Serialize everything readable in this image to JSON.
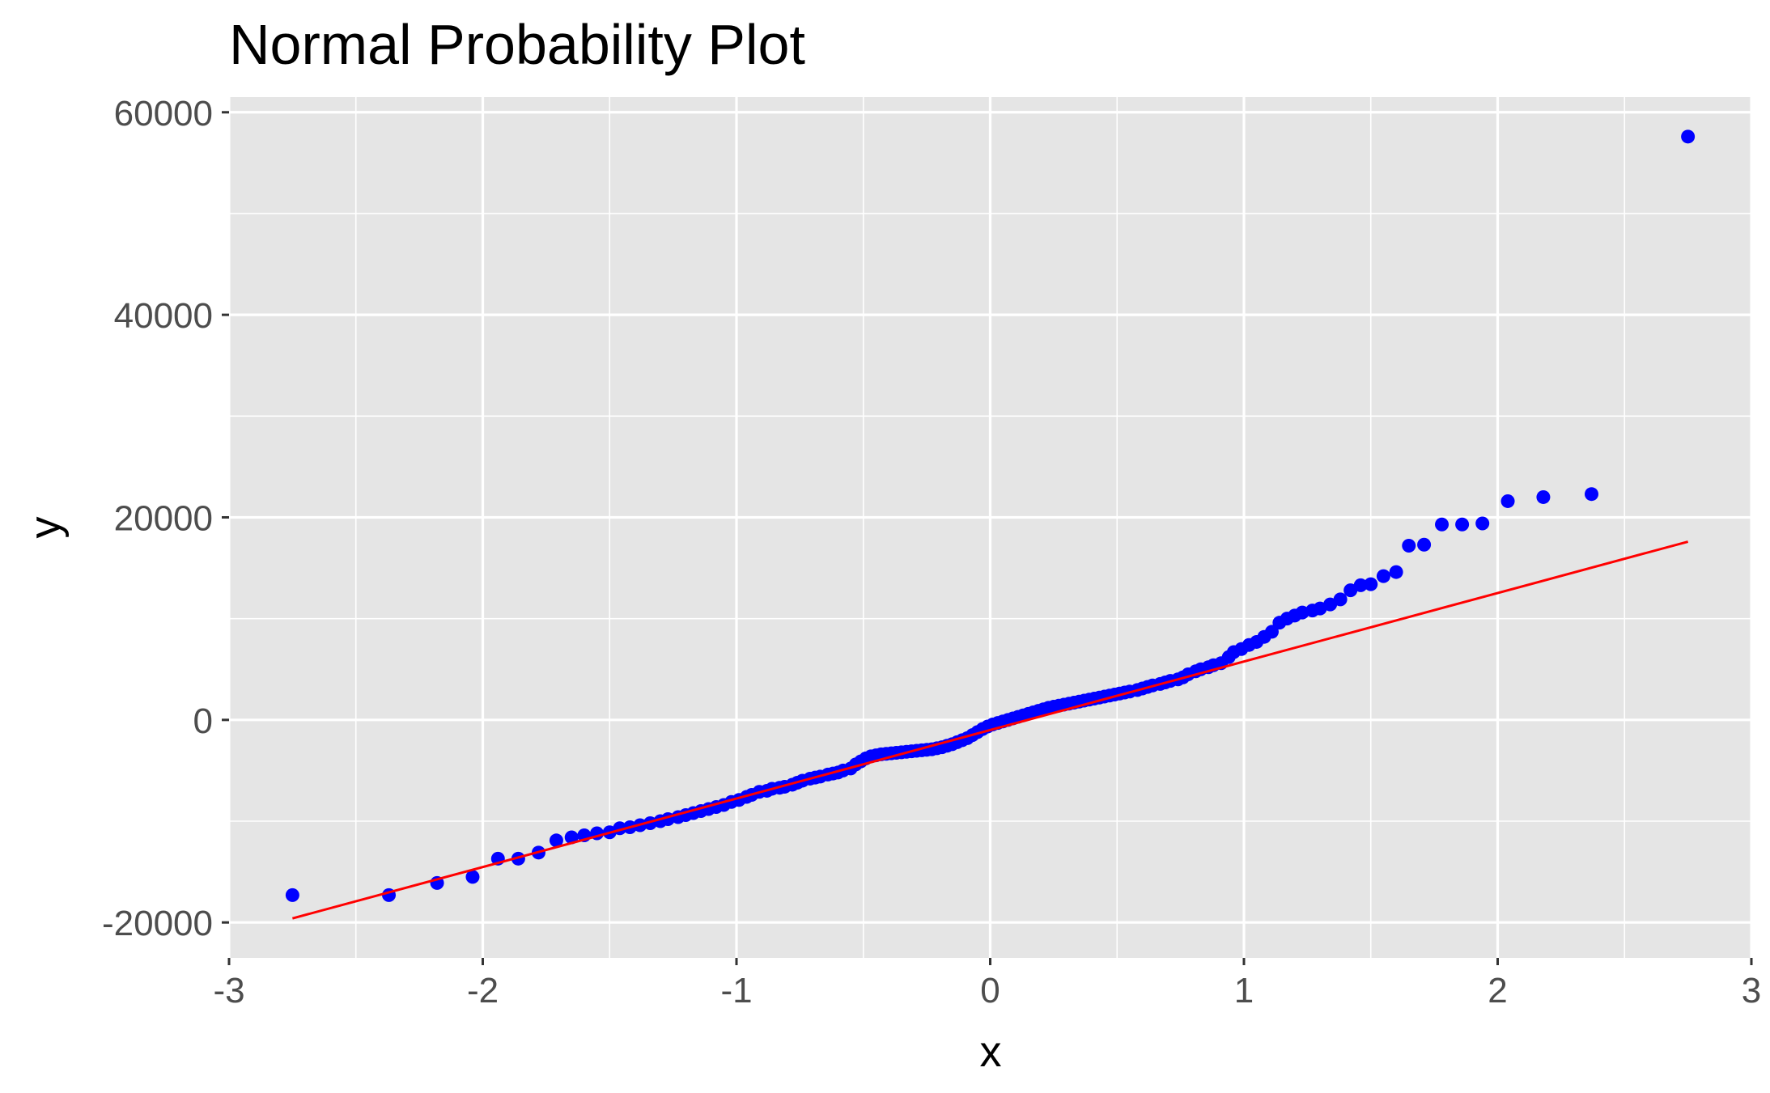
{
  "chart_data": {
    "type": "scatter",
    "title": "Normal Probability Plot",
    "xlabel": "x",
    "ylabel": "y",
    "xlim": [
      -3,
      3
    ],
    "ylim": [
      -23500,
      61500
    ],
    "x_ticks": [
      -3,
      -2,
      -1,
      0,
      1,
      2,
      3
    ],
    "x_tick_labels": [
      "-3",
      "-2",
      "-1",
      "0",
      "1",
      "2",
      "3"
    ],
    "y_ticks": [
      -20000,
      0,
      20000,
      40000,
      60000
    ],
    "y_tick_labels": [
      "-20000",
      "0",
      "20000",
      "40000",
      "60000"
    ],
    "grid": true,
    "legend": "none",
    "colors": {
      "panel_background": "#e5e5e5",
      "grid_line": "#ffffff",
      "points": "#0000ff",
      "reference_line": "#ff0000",
      "tick_label": "#4d4d4d"
    },
    "reference_line": {
      "x": [
        -2.75,
        2.75
      ],
      "y": [
        -19600,
        17600
      ]
    },
    "series": [
      {
        "points": [
          [
            -2.75,
            -17300
          ],
          [
            -2.37,
            -17300
          ],
          [
            -2.18,
            -16100
          ],
          [
            -2.04,
            -15500
          ],
          [
            -1.94,
            -13700
          ],
          [
            -1.86,
            -13700
          ],
          [
            -1.78,
            -13100
          ],
          [
            -1.71,
            -11900
          ],
          [
            -1.65,
            -11600
          ],
          [
            -1.6,
            -11400
          ],
          [
            -1.55,
            -11200
          ],
          [
            -1.5,
            -11100
          ],
          [
            -1.46,
            -10700
          ],
          [
            -1.42,
            -10600
          ],
          [
            -1.38,
            -10400
          ],
          [
            -1.34,
            -10200
          ],
          [
            -1.3,
            -10000
          ],
          [
            -1.27,
            -9800
          ],
          [
            -1.23,
            -9600
          ],
          [
            -1.2,
            -9400
          ],
          [
            -1.17,
            -9200
          ],
          [
            -1.14,
            -9000
          ],
          [
            -1.11,
            -8800
          ],
          [
            -1.08,
            -8600
          ],
          [
            -1.05,
            -8400
          ],
          [
            -1.02,
            -8100
          ],
          [
            -0.99,
            -7900
          ],
          [
            -0.96,
            -7600
          ],
          [
            -0.94,
            -7400
          ],
          [
            -0.91,
            -7100
          ],
          [
            -0.88,
            -7000
          ],
          [
            -0.86,
            -6800
          ],
          [
            -0.83,
            -6700
          ],
          [
            -0.81,
            -6600
          ],
          [
            -0.78,
            -6400
          ],
          [
            -0.76,
            -6200
          ],
          [
            -0.74,
            -6000
          ],
          [
            -0.71,
            -5800
          ],
          [
            -0.69,
            -5700
          ],
          [
            -0.67,
            -5600
          ],
          [
            -0.64,
            -5400
          ],
          [
            -0.62,
            -5300
          ],
          [
            -0.6,
            -5200
          ],
          [
            -0.58,
            -5000
          ],
          [
            -0.55,
            -4800
          ],
          [
            -0.53,
            -4400
          ],
          [
            -0.51,
            -4100
          ],
          [
            -0.49,
            -3800
          ],
          [
            -0.47,
            -3600
          ],
          [
            -0.45,
            -3500
          ],
          [
            -0.43,
            -3400
          ],
          [
            -0.41,
            -3350
          ],
          [
            -0.39,
            -3300
          ],
          [
            -0.37,
            -3250
          ],
          [
            -0.35,
            -3200
          ],
          [
            -0.33,
            -3150
          ],
          [
            -0.31,
            -3100
          ],
          [
            -0.29,
            -3050
          ],
          [
            -0.27,
            -3000
          ],
          [
            -0.25,
            -2950
          ],
          [
            -0.23,
            -2900
          ],
          [
            -0.21,
            -2800
          ],
          [
            -0.19,
            -2700
          ],
          [
            -0.17,
            -2550
          ],
          [
            -0.15,
            -2400
          ],
          [
            -0.13,
            -2200
          ],
          [
            -0.11,
            -2000
          ],
          [
            -0.09,
            -1800
          ],
          [
            -0.07,
            -1500
          ],
          [
            -0.05,
            -1200
          ],
          [
            -0.03,
            -900
          ],
          [
            -0.01,
            -650
          ],
          [
            0.01,
            -450
          ],
          [
            0.03,
            -300
          ],
          [
            0.05,
            -150
          ],
          [
            0.07,
            0
          ],
          [
            0.09,
            150
          ],
          [
            0.11,
            300
          ],
          [
            0.13,
            450
          ],
          [
            0.15,
            600
          ],
          [
            0.17,
            750
          ],
          [
            0.19,
            900
          ],
          [
            0.21,
            1050
          ],
          [
            0.23,
            1200
          ],
          [
            0.25,
            1300
          ],
          [
            0.27,
            1400
          ],
          [
            0.29,
            1500
          ],
          [
            0.31,
            1600
          ],
          [
            0.33,
            1700
          ],
          [
            0.35,
            1800
          ],
          [
            0.37,
            1900
          ],
          [
            0.39,
            2000
          ],
          [
            0.41,
            2100
          ],
          [
            0.43,
            2200
          ],
          [
            0.45,
            2300
          ],
          [
            0.47,
            2400
          ],
          [
            0.49,
            2500
          ],
          [
            0.51,
            2600
          ],
          [
            0.53,
            2700
          ],
          [
            0.55,
            2800
          ],
          [
            0.58,
            2950
          ],
          [
            0.6,
            3100
          ],
          [
            0.62,
            3250
          ],
          [
            0.64,
            3400
          ],
          [
            0.67,
            3550
          ],
          [
            0.69,
            3700
          ],
          [
            0.71,
            3850
          ],
          [
            0.74,
            4000
          ],
          [
            0.76,
            4200
          ],
          [
            0.78,
            4500
          ],
          [
            0.81,
            4800
          ],
          [
            0.83,
            5000
          ],
          [
            0.86,
            5200
          ],
          [
            0.88,
            5400
          ],
          [
            0.91,
            5600
          ],
          [
            0.94,
            6200
          ],
          [
            0.96,
            6700
          ],
          [
            0.99,
            7000
          ],
          [
            1.02,
            7400
          ],
          [
            1.05,
            7700
          ],
          [
            1.08,
            8200
          ],
          [
            1.11,
            8700
          ],
          [
            1.14,
            9600
          ],
          [
            1.17,
            10000
          ],
          [
            1.2,
            10300
          ],
          [
            1.23,
            10600
          ],
          [
            1.27,
            10800
          ],
          [
            1.3,
            11000
          ],
          [
            1.34,
            11400
          ],
          [
            1.38,
            11900
          ],
          [
            1.42,
            12800
          ],
          [
            1.46,
            13300
          ],
          [
            1.5,
            13400
          ],
          [
            1.55,
            14200
          ],
          [
            1.6,
            14600
          ],
          [
            1.65,
            17200
          ],
          [
            1.71,
            17300
          ],
          [
            1.78,
            19300
          ],
          [
            1.86,
            19300
          ],
          [
            1.94,
            19400
          ],
          [
            2.04,
            21600
          ],
          [
            2.18,
            22000
          ],
          [
            2.37,
            22300
          ],
          [
            2.75,
            57600
          ]
        ]
      }
    ]
  }
}
